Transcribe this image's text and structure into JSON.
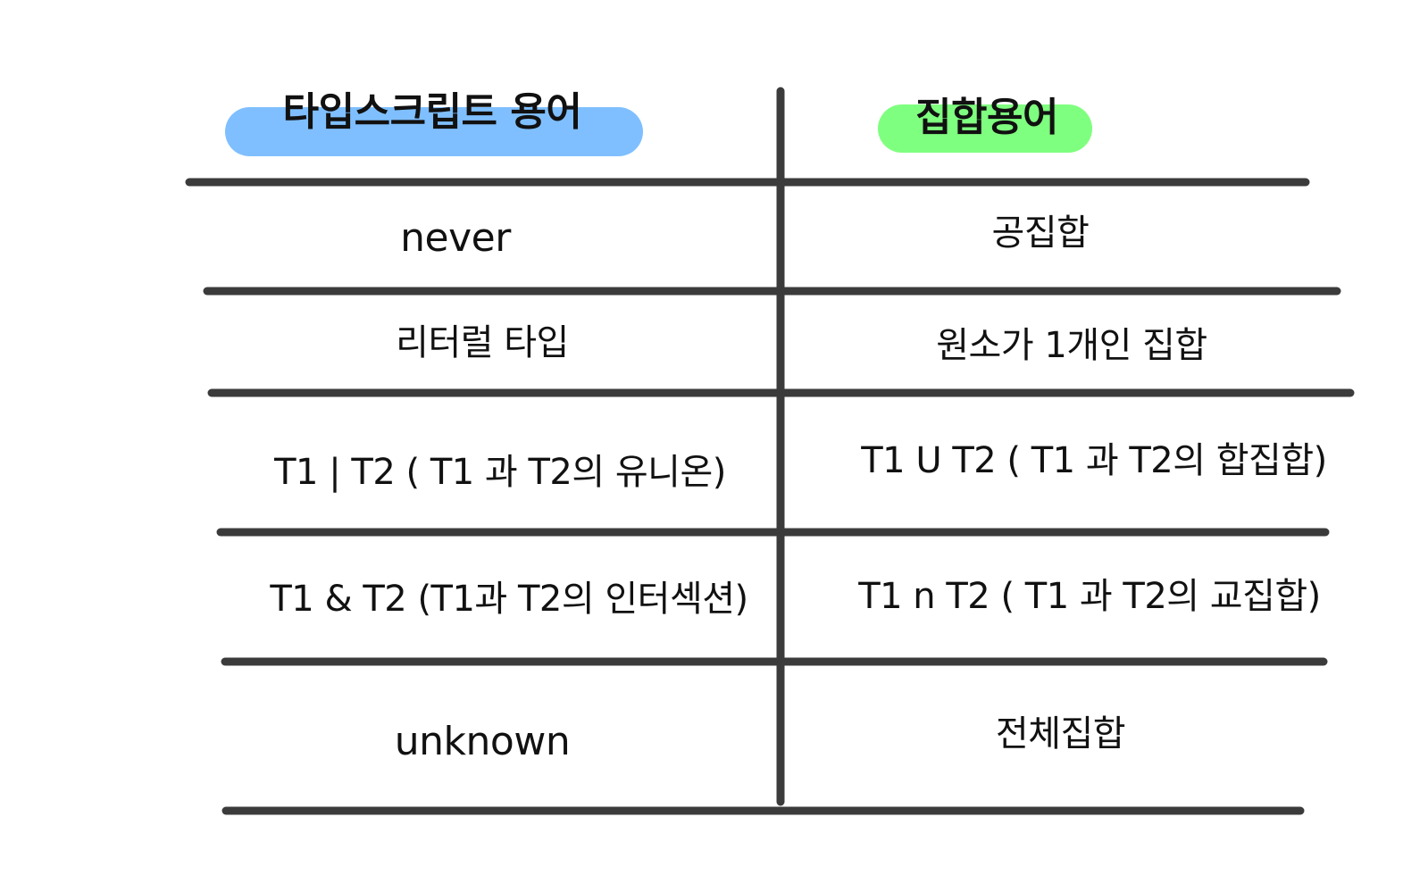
{
  "colors": {
    "line": "#3b3b3b",
    "left_header_highlight": "#7fbfff",
    "right_header_highlight": "#7fff7f",
    "text": "#111111"
  },
  "headers": {
    "left": "타입스크립트 용어",
    "right": "집합용어"
  },
  "rows": [
    {
      "left": "never",
      "right": "공집합"
    },
    {
      "left": "리터럴 타입",
      "right": "원소가 1개인 집합"
    },
    {
      "left": "T1 | T2 ( T1 과 T2의 유니온)",
      "right": "T1 U T2 ( T1 과 T2의 합집합)"
    },
    {
      "left": "T1 & T2 (T1과 T2의 인터섹션)",
      "right": "T1 n T2 ( T1 과 T2의 교집합)"
    },
    {
      "left": "unknown",
      "right": "전체집합"
    }
  ]
}
